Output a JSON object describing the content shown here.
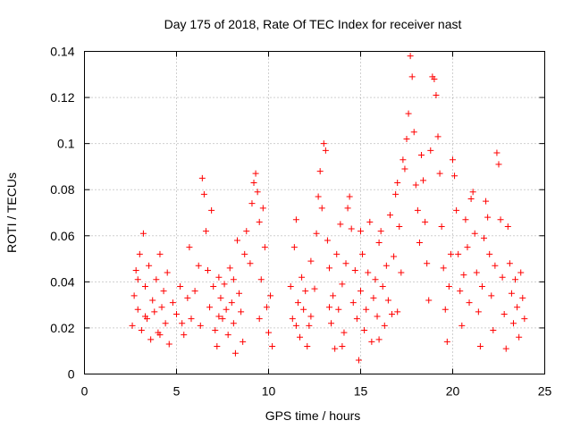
{
  "chart_data": {
    "type": "scatter",
    "title": "Day 175 of 2018, Rate Of TEC Index for receiver nast",
    "xlabel": "GPS time / hours",
    "ylabel": "ROTI / TECUs",
    "xlim": [
      0,
      25
    ],
    "ylim": [
      0,
      0.14
    ],
    "x_ticks": [
      0,
      5,
      10,
      15,
      20,
      25
    ],
    "x_tick_labels": [
      "0",
      "5",
      "10",
      "15",
      "20",
      "25"
    ],
    "y_ticks": [
      0,
      0.02,
      0.04,
      0.06,
      0.08,
      0.1,
      0.12,
      0.14
    ],
    "y_tick_labels": [
      "0",
      "0.02",
      "0.04",
      "0.06",
      "0.08",
      "0.1",
      "0.12",
      "0.14"
    ],
    "grid": true,
    "marker": "+",
    "marker_color": "#ff0000",
    "series": [
      {
        "name": "ROTI",
        "points": [
          [
            2.6,
            0.021
          ],
          [
            2.7,
            0.034
          ],
          [
            2.8,
            0.045
          ],
          [
            2.9,
            0.028
          ],
          [
            3.0,
            0.052
          ],
          [
            3.1,
            0.019
          ],
          [
            3.2,
            0.061
          ],
          [
            3.3,
            0.038
          ],
          [
            3.4,
            0.024
          ],
          [
            3.5,
            0.047
          ],
          [
            3.6,
            0.015
          ],
          [
            3.7,
            0.032
          ],
          [
            3.8,
            0.027
          ],
          [
            3.9,
            0.041
          ],
          [
            4.0,
            0.018
          ],
          [
            4.1,
            0.052
          ],
          [
            4.2,
            0.029
          ],
          [
            4.3,
            0.036
          ],
          [
            4.4,
            0.022
          ],
          [
            4.5,
            0.044
          ],
          [
            4.6,
            0.013
          ],
          [
            4.8,
            0.031
          ],
          [
            5.0,
            0.026
          ],
          [
            5.2,
            0.038
          ],
          [
            5.4,
            0.017
          ],
          [
            5.6,
            0.033
          ],
          [
            5.7,
            0.055
          ],
          [
            5.8,
            0.024
          ],
          [
            6.0,
            0.036
          ],
          [
            6.2,
            0.047
          ],
          [
            6.3,
            0.021
          ],
          [
            6.4,
            0.085
          ],
          [
            6.5,
            0.078
          ],
          [
            6.6,
            0.062
          ],
          [
            6.7,
            0.045
          ],
          [
            6.8,
            0.029
          ],
          [
            6.9,
            0.071
          ],
          [
            7.0,
            0.038
          ],
          [
            7.1,
            0.019
          ],
          [
            7.2,
            0.012
          ],
          [
            7.3,
            0.042
          ],
          [
            7.4,
            0.033
          ],
          [
            7.5,
            0.024
          ],
          [
            7.6,
            0.039
          ],
          [
            7.7,
            0.028
          ],
          [
            7.8,
            0.017
          ],
          [
            7.9,
            0.046
          ],
          [
            8.0,
            0.031
          ],
          [
            8.1,
            0.022
          ],
          [
            8.2,
            0.009
          ],
          [
            8.3,
            0.058
          ],
          [
            8.4,
            0.035
          ],
          [
            8.5,
            0.027
          ],
          [
            8.6,
            0.014
          ],
          [
            8.7,
            0.052
          ],
          [
            8.8,
            0.062
          ],
          [
            9.0,
            0.048
          ],
          [
            9.1,
            0.074
          ],
          [
            9.2,
            0.083
          ],
          [
            9.3,
            0.087
          ],
          [
            9.4,
            0.079
          ],
          [
            9.5,
            0.066
          ],
          [
            9.6,
            0.041
          ],
          [
            9.7,
            0.072
          ],
          [
            9.8,
            0.055
          ],
          [
            9.9,
            0.029
          ],
          [
            10.0,
            0.018
          ],
          [
            10.1,
            0.034
          ],
          [
            10.2,
            0.012
          ],
          [
            11.2,
            0.038
          ],
          [
            11.3,
            0.024
          ],
          [
            11.4,
            0.055
          ],
          [
            11.5,
            0.067
          ],
          [
            11.6,
            0.031
          ],
          [
            11.7,
            0.016
          ],
          [
            11.8,
            0.042
          ],
          [
            11.9,
            0.028
          ],
          [
            12.0,
            0.036
          ],
          [
            12.1,
            0.012
          ],
          [
            12.2,
            0.021
          ],
          [
            12.3,
            0.049
          ],
          [
            12.5,
            0.037
          ],
          [
            12.6,
            0.061
          ],
          [
            12.7,
            0.077
          ],
          [
            12.8,
            0.088
          ],
          [
            12.9,
            0.072
          ],
          [
            13.0,
            0.1
          ],
          [
            13.1,
            0.097
          ],
          [
            13.2,
            0.058
          ],
          [
            13.3,
            0.046
          ],
          [
            13.4,
            0.022
          ],
          [
            13.5,
            0.034
          ],
          [
            13.6,
            0.011
          ],
          [
            13.7,
            0.052
          ],
          [
            13.8,
            0.028
          ],
          [
            13.9,
            0.065
          ],
          [
            14.0,
            0.039
          ],
          [
            14.1,
            0.018
          ],
          [
            14.2,
            0.048
          ],
          [
            14.3,
            0.072
          ],
          [
            14.4,
            0.077
          ],
          [
            14.5,
            0.063
          ],
          [
            14.6,
            0.031
          ],
          [
            14.7,
            0.045
          ],
          [
            14.8,
            0.024
          ],
          [
            14.9,
            0.006
          ],
          [
            15.0,
            0.036
          ],
          [
            15.1,
            0.052
          ],
          [
            15.2,
            0.019
          ],
          [
            15.3,
            0.028
          ],
          [
            15.4,
            0.044
          ],
          [
            15.5,
            0.066
          ],
          [
            15.6,
            0.014
          ],
          [
            15.7,
            0.033
          ],
          [
            15.8,
            0.041
          ],
          [
            15.9,
            0.025
          ],
          [
            16.0,
            0.057
          ],
          [
            16.1,
            0.062
          ],
          [
            16.2,
            0.038
          ],
          [
            16.3,
            0.021
          ],
          [
            16.4,
            0.047
          ],
          [
            16.5,
            0.032
          ],
          [
            16.6,
            0.069
          ],
          [
            16.7,
            0.026
          ],
          [
            16.8,
            0.051
          ],
          [
            16.9,
            0.078
          ],
          [
            17.0,
            0.083
          ],
          [
            17.1,
            0.064
          ],
          [
            17.2,
            0.044
          ],
          [
            17.3,
            0.093
          ],
          [
            17.4,
            0.089
          ],
          [
            17.5,
            0.102
          ],
          [
            17.6,
            0.113
          ],
          [
            17.7,
            0.138
          ],
          [
            17.8,
            0.129
          ],
          [
            17.9,
            0.105
          ],
          [
            18.0,
            0.082
          ],
          [
            18.1,
            0.071
          ],
          [
            18.2,
            0.057
          ],
          [
            18.3,
            0.095
          ],
          [
            18.4,
            0.084
          ],
          [
            18.5,
            0.066
          ],
          [
            18.6,
            0.048
          ],
          [
            18.7,
            0.032
          ],
          [
            18.8,
            0.097
          ],
          [
            18.9,
            0.129
          ],
          [
            19.0,
            0.128
          ],
          [
            19.1,
            0.121
          ],
          [
            19.2,
            0.103
          ],
          [
            19.3,
            0.087
          ],
          [
            19.4,
            0.064
          ],
          [
            19.5,
            0.046
          ],
          [
            19.6,
            0.028
          ],
          [
            19.7,
            0.014
          ],
          [
            19.8,
            0.038
          ],
          [
            19.9,
            0.052
          ],
          [
            20.0,
            0.093
          ],
          [
            20.1,
            0.086
          ],
          [
            20.2,
            0.071
          ],
          [
            20.3,
            0.052
          ],
          [
            20.4,
            0.036
          ],
          [
            20.5,
            0.021
          ],
          [
            20.6,
            0.043
          ],
          [
            20.7,
            0.067
          ],
          [
            20.8,
            0.055
          ],
          [
            20.9,
            0.031
          ],
          [
            21.0,
            0.076
          ],
          [
            21.1,
            0.079
          ],
          [
            21.2,
            0.061
          ],
          [
            21.3,
            0.044
          ],
          [
            21.4,
            0.027
          ],
          [
            21.5,
            0.012
          ],
          [
            21.6,
            0.038
          ],
          [
            21.7,
            0.059
          ],
          [
            21.8,
            0.075
          ],
          [
            21.9,
            0.068
          ],
          [
            22.0,
            0.052
          ],
          [
            22.1,
            0.034
          ],
          [
            22.2,
            0.019
          ],
          [
            22.3,
            0.047
          ],
          [
            22.4,
            0.096
          ],
          [
            22.5,
            0.091
          ],
          [
            22.6,
            0.067
          ],
          [
            22.7,
            0.042
          ],
          [
            22.8,
            0.026
          ],
          [
            22.9,
            0.011
          ],
          [
            23.0,
            0.064
          ],
          [
            23.1,
            0.048
          ],
          [
            23.2,
            0.035
          ],
          [
            23.3,
            0.022
          ],
          [
            23.4,
            0.041
          ],
          [
            23.5,
            0.029
          ],
          [
            23.6,
            0.016
          ],
          [
            23.7,
            0.044
          ],
          [
            23.8,
            0.033
          ],
          [
            23.9,
            0.024
          ],
          [
            2.9,
            0.041
          ],
          [
            3.3,
            0.025
          ],
          [
            4.1,
            0.017
          ],
          [
            5.3,
            0.022
          ],
          [
            7.3,
            0.025
          ],
          [
            8.1,
            0.041
          ],
          [
            9.5,
            0.024
          ],
          [
            11.5,
            0.021
          ],
          [
            12.3,
            0.025
          ],
          [
            13.3,
            0.029
          ],
          [
            14.0,
            0.012
          ],
          [
            15.0,
            0.062
          ],
          [
            16.0,
            0.015
          ],
          [
            17.0,
            0.027
          ]
        ]
      }
    ]
  }
}
